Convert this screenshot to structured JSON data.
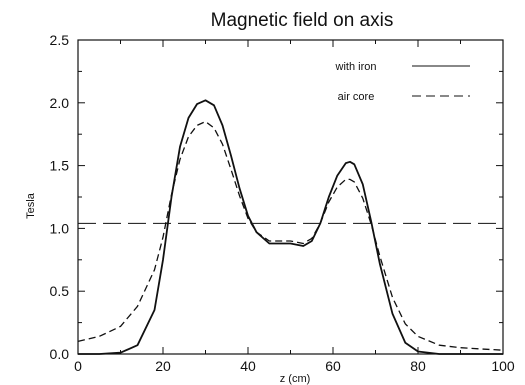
{
  "chart_data": {
    "type": "line",
    "title": "Magnetic field on axis",
    "xlabel": "z (cm)",
    "ylabel": "Tesla",
    "xlim": [
      0,
      100
    ],
    "ylim": [
      0,
      2.5
    ],
    "xticks": [
      "0",
      "20",
      "40",
      "60",
      "80",
      "100"
    ],
    "yticks": [
      "0.0",
      "0.5",
      "1.0",
      "1.5",
      "2.0",
      "2.5"
    ],
    "legend_position": "top-right",
    "grid": false,
    "reference_line": {
      "y": 1.04,
      "style": "long-dash"
    },
    "series": [
      {
        "name": "with iron",
        "style": "solid",
        "x": [
          0,
          5,
          10,
          14,
          18,
          20,
          22,
          24,
          26,
          28,
          30,
          32,
          34,
          36,
          38,
          40,
          42,
          45,
          48,
          50,
          53,
          55,
          57,
          59,
          61,
          63,
          64,
          65,
          67,
          69,
          71,
          74,
          77,
          80,
          85,
          90,
          95,
          100
        ],
        "y": [
          0.0,
          0.0,
          0.01,
          0.07,
          0.35,
          0.75,
          1.25,
          1.65,
          1.88,
          1.99,
          2.02,
          1.98,
          1.82,
          1.58,
          1.32,
          1.1,
          0.97,
          0.88,
          0.88,
          0.88,
          0.86,
          0.9,
          1.04,
          1.25,
          1.42,
          1.52,
          1.53,
          1.51,
          1.35,
          1.05,
          0.72,
          0.32,
          0.09,
          0.02,
          0.0,
          0.0,
          0.0,
          0.0
        ]
      },
      {
        "name": "air core",
        "style": "dashed",
        "x": [
          0,
          5,
          10,
          14,
          18,
          20,
          22,
          24,
          26,
          28,
          30,
          32,
          34,
          36,
          38,
          40,
          42,
          45,
          48,
          50,
          53,
          55,
          57,
          59,
          61,
          63,
          64,
          65,
          67,
          69,
          71,
          74,
          77,
          80,
          85,
          90,
          95,
          100
        ],
        "y": [
          0.1,
          0.14,
          0.22,
          0.38,
          0.67,
          0.93,
          1.27,
          1.55,
          1.73,
          1.82,
          1.85,
          1.8,
          1.67,
          1.47,
          1.26,
          1.08,
          0.97,
          0.9,
          0.9,
          0.9,
          0.88,
          0.92,
          1.04,
          1.21,
          1.33,
          1.39,
          1.39,
          1.37,
          1.24,
          1.03,
          0.78,
          0.45,
          0.24,
          0.14,
          0.07,
          0.05,
          0.04,
          0.03
        ]
      }
    ]
  }
}
